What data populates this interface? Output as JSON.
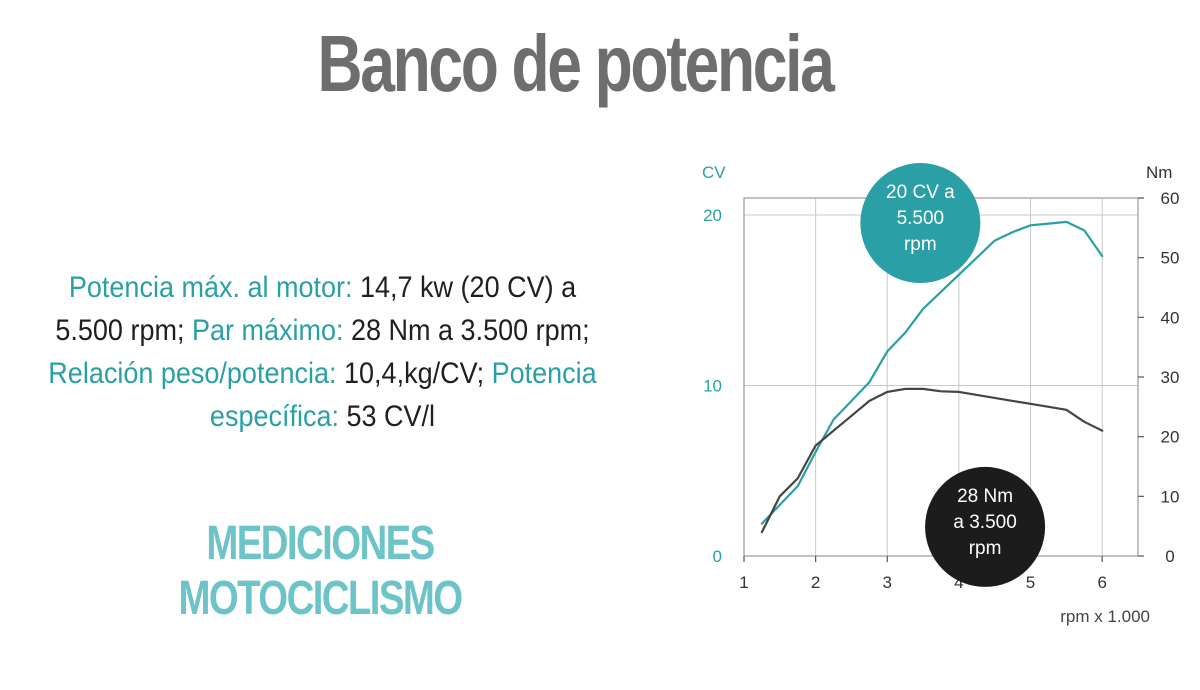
{
  "title": "Banco de potencia",
  "specs": [
    {
      "label": "Potencia máx. al motor: ",
      "value": "14,7 kw (20 CV) a 5.500 rpm; "
    },
    {
      "label": "Par máximo: ",
      "value": "28 Nm a 3.500 rpm; "
    },
    {
      "label": "Relación peso/potencia: ",
      "value": "10,4,kg/CV; "
    },
    {
      "label": "Potencia específica: ",
      "value": "53 CV/l"
    }
  ],
  "brand": "MEDICIONES MOTOCICLISMO",
  "colors": {
    "power": "#2aa0a6",
    "torque": "#444444",
    "torque_badge": "#1c1c1c"
  },
  "chart_data": {
    "type": "line",
    "xlabel": "rpm x 1.000",
    "xlim": [
      1,
      6.5
    ],
    "x_ticks": [
      1,
      2,
      3,
      4,
      5,
      6
    ],
    "y_left": {
      "label": "CV",
      "lim": [
        0,
        21
      ],
      "ticks": [
        0,
        10,
        20
      ]
    },
    "y_right": {
      "label": "Nm",
      "lim": [
        0,
        60
      ],
      "ticks": [
        0,
        10,
        20,
        30,
        40,
        50,
        60
      ]
    },
    "grid": true,
    "series": [
      {
        "axis": "left",
        "color": "#2aa0a6",
        "x": [
          1.25,
          1.5,
          1.75,
          2.0,
          2.25,
          2.5,
          2.75,
          3.0,
          3.25,
          3.5,
          3.75,
          4.0,
          4.25,
          4.5,
          4.75,
          5.0,
          5.25,
          5.5,
          5.75,
          6.0
        ],
        "y": [
          1.9,
          3.0,
          4.1,
          6.1,
          8.0,
          9.1,
          10.2,
          12.0,
          13.1,
          14.5,
          15.5,
          16.5,
          17.5,
          18.5,
          19.0,
          19.4,
          19.5,
          19.6,
          19.1,
          17.6
        ]
      },
      {
        "axis": "right",
        "color": "#444444",
        "x": [
          1.25,
          1.5,
          1.75,
          2.0,
          2.25,
          2.5,
          2.75,
          3.0,
          3.25,
          3.5,
          3.75,
          4.0,
          4.25,
          4.5,
          4.75,
          5.0,
          5.25,
          5.5,
          5.75,
          6.0
        ],
        "y": [
          4,
          10,
          13,
          18.5,
          21,
          23.5,
          26,
          27.5,
          28,
          28,
          27.6,
          27.5,
          27,
          26.5,
          26,
          25.5,
          25,
          24.5,
          22.5,
          21
        ]
      }
    ],
    "annotations": [
      {
        "text": [
          "20 CV a",
          "5.500",
          "rpm"
        ],
        "x": 5.5,
        "y": 20,
        "axis": "left",
        "fill": "#2aa0a6"
      },
      {
        "text": [
          "28 Nm",
          "a 3.500",
          "rpm"
        ],
        "x": 3.5,
        "y": 28,
        "axis": "right",
        "fill": "#1c1c1c"
      }
    ]
  }
}
